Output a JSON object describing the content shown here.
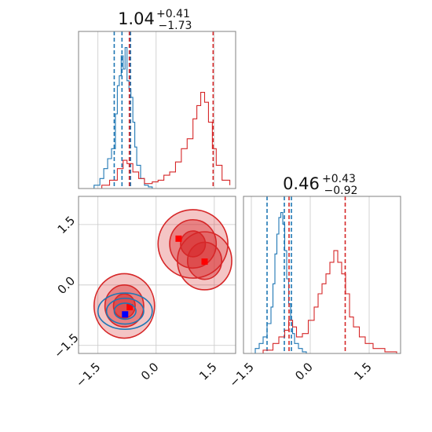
{
  "colors": {
    "blue": "#1f77b4",
    "red": "#d62728",
    "grid": "#c8c8c8",
    "frame": "#808080"
  },
  "chart_data": [
    {
      "type": "line",
      "panel": "hist-param-1",
      "title": {
        "value": "1.04",
        "upper": "+0.41",
        "lower": "−1.73"
      },
      "xlim": [
        -2.0,
        2.05
      ],
      "grid": true,
      "series": [
        {
          "color": "#1f77b4",
          "kind": "histogram",
          "x": [
            -1.75,
            -1.6,
            -1.45,
            -1.35,
            -1.25,
            -1.15,
            -1.05,
            -1.0,
            -0.95,
            -0.9,
            -0.85,
            -0.8,
            -0.75,
            -0.7,
            -0.65,
            -0.6,
            -0.55,
            -0.5,
            -0.4,
            -0.3,
            -0.2,
            -0.1
          ],
          "y": [
            0,
            0.02,
            0.06,
            0.12,
            0.18,
            0.24,
            0.45,
            0.62,
            0.68,
            0.8,
            0.72,
            0.85,
            0.65,
            0.6,
            0.55,
            0.4,
            0.25,
            0.14,
            0.06,
            0.02,
            0.01,
            0
          ],
          "dashed_lines": [
            -1.08,
            -0.88,
            -0.66
          ]
        },
        {
          "color": "#d62728",
          "kind": "histogram",
          "x": [
            -1.7,
            -1.4,
            -1.2,
            -1.0,
            -0.85,
            -0.75,
            -0.6,
            -0.45,
            -0.3,
            -0.1,
            0.05,
            0.2,
            0.35,
            0.5,
            0.65,
            0.8,
            0.95,
            1.05,
            1.15,
            1.25,
            1.35,
            1.45,
            1.55,
            1.7,
            1.9
          ],
          "y": [
            0,
            0.02,
            0.05,
            0.12,
            0.17,
            0.15,
            0.1,
            0.06,
            0.03,
            0.04,
            0.05,
            0.08,
            0.1,
            0.16,
            0.24,
            0.3,
            0.42,
            0.5,
            0.58,
            0.52,
            0.4,
            0.24,
            0.14,
            0.05,
            0.02
          ],
          "dashed_lines": [
            -0.69,
            1.47
          ]
        }
      ]
    },
    {
      "type": "line",
      "panel": "hist-param-2",
      "title": {
        "value": "0.46",
        "upper": "+0.43",
        "lower": "−0.92"
      },
      "xlim": [
        -1.7,
        2.3
      ],
      "xticks": [
        "−1.5",
        "0.0",
        "1.5"
      ],
      "grid": true,
      "series": [
        {
          "color": "#1f77b4",
          "kind": "histogram",
          "x": [
            -1.55,
            -1.4,
            -1.3,
            -1.2,
            -1.1,
            -1.0,
            -0.95,
            -0.9,
            -0.85,
            -0.8,
            -0.75,
            -0.7,
            -0.65,
            -0.6,
            -0.55,
            -0.5,
            -0.45,
            -0.4,
            -0.3,
            -0.2,
            -0.1
          ],
          "y": [
            0,
            0.03,
            0.06,
            0.1,
            0.18,
            0.28,
            0.42,
            0.6,
            0.72,
            0.82,
            0.85,
            0.78,
            0.62,
            0.45,
            0.3,
            0.2,
            0.12,
            0.06,
            0.03,
            0.01,
            0
          ],
          "dashed_lines": [
            -1.1,
            -0.66,
            -0.48
          ]
        },
        {
          "color": "#d62728",
          "kind": "histogram",
          "x": [
            -1.6,
            -1.2,
            -0.95,
            -0.8,
            -0.65,
            -0.55,
            -0.45,
            -0.35,
            -0.2,
            -0.05,
            0.1,
            0.2,
            0.3,
            0.4,
            0.5,
            0.6,
            0.7,
            0.8,
            0.9,
            1.0,
            1.1,
            1.25,
            1.4,
            1.6,
            1.9,
            2.2
          ],
          "y": [
            0,
            0.02,
            0.06,
            0.1,
            0.14,
            0.2,
            0.16,
            0.1,
            0.12,
            0.2,
            0.28,
            0.36,
            0.42,
            0.48,
            0.55,
            0.62,
            0.55,
            0.48,
            0.36,
            0.22,
            0.16,
            0.1,
            0.06,
            0.03,
            0.01,
            0
          ],
          "dashed_lines": [
            -0.54,
            0.89
          ]
        }
      ]
    },
    {
      "type": "scatter",
      "panel": "joint-param-1-vs-param-2",
      "xlim": [
        -2.0,
        2.05
      ],
      "ylim": [
        -1.7,
        2.2
      ],
      "xticks": [
        "−1.5",
        "0.0",
        "1.5"
      ],
      "yticks": [
        "−1.5",
        "0.0",
        "1.5"
      ],
      "grid": true,
      "series": [
        {
          "color": "#d62728",
          "kind": "filled-contours",
          "clusters": [
            {
              "center": [
                -0.82,
                -0.52
              ],
              "radii": [
                [
                  0.78,
                  0.8
                ],
                [
                  0.5,
                  0.52
                ],
                [
                  0.28,
                  0.3
                ]
              ]
            },
            {
              "center": [
                0.95,
                1.02
              ],
              "radii": [
                [
                  0.9,
                  0.85
                ],
                [
                  0.6,
                  0.6
                ],
                [
                  0.32,
                  0.32
                ]
              ]
            },
            {
              "center": [
                1.25,
                0.6
              ],
              "radii": [
                [
                  0.7,
                  0.72
                ],
                [
                  0.44,
                  0.46
                ]
              ]
            }
          ],
          "markers": [
            [
              0.58,
              1.15
            ],
            [
              1.25,
              0.58
            ],
            [
              -0.68,
              -0.55
            ]
          ]
        },
        {
          "color": "#1f77b4",
          "kind": "contours",
          "clusters": [
            {
              "center": [
                -0.8,
                -0.65
              ],
              "radii": [
                [
                  0.7,
                  0.45
                ],
                [
                  0.48,
                  0.32
                ],
                [
                  0.28,
                  0.2
                ]
              ]
            }
          ],
          "markers": [
            [
              -0.8,
              -0.73
            ]
          ]
        }
      ]
    }
  ]
}
